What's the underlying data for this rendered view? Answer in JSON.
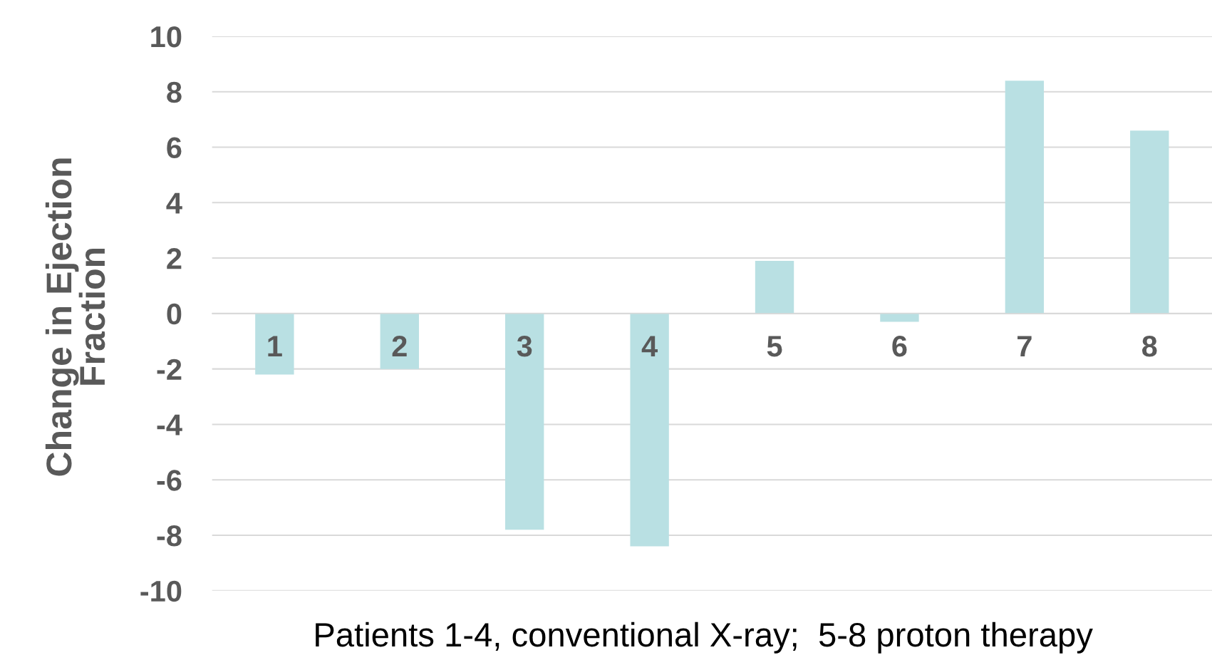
{
  "chart_data": {
    "type": "bar",
    "xlabel": "Patients 1-4, conventional X-ray;  5-8 proton therapy",
    "ylabel": "Change in Ejection\nFraction",
    "categories": [
      "1",
      "2",
      "3",
      "4",
      "5",
      "6",
      "7",
      "8"
    ],
    "values": [
      -2.2,
      -2.0,
      -7.8,
      -8.4,
      1.9,
      -0.3,
      8.4,
      6.6
    ],
    "color": "#b9e0e3",
    "ylim": [
      -10,
      10
    ],
    "yticks": [
      -10,
      -8,
      -6,
      -4,
      -2,
      0,
      2,
      4,
      6,
      8,
      10
    ],
    "grid": "y"
  }
}
